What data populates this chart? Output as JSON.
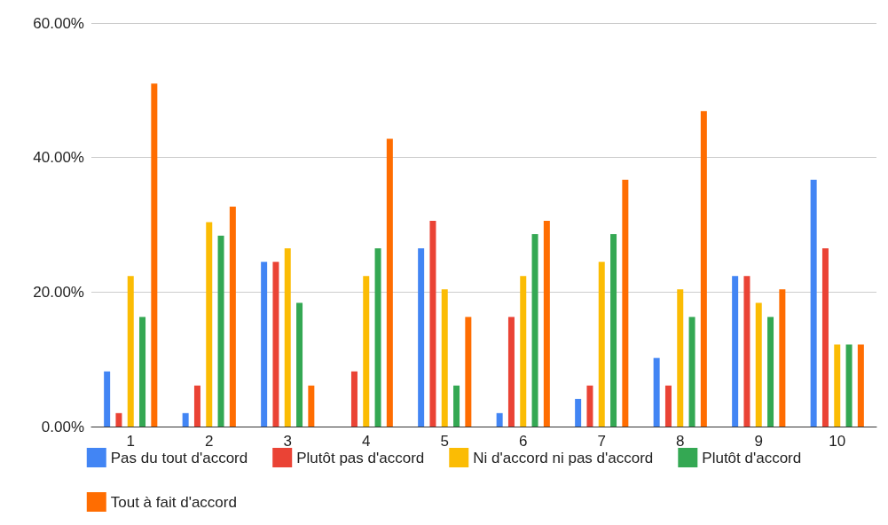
{
  "chart_data": {
    "type": "bar",
    "categories": [
      "1",
      "2",
      "3",
      "4",
      "5",
      "6",
      "7",
      "8",
      "9",
      "10"
    ],
    "series": [
      {
        "name": "Pas du tout d'accord",
        "color": "#4285f4",
        "values": [
          8.2,
          2.0,
          24.5,
          0,
          26.5,
          2.0,
          4.1,
          10.2,
          22.4,
          36.7
        ]
      },
      {
        "name": "Plutôt pas d'accord",
        "color": "#ea4335",
        "values": [
          2.0,
          6.1,
          24.5,
          8.2,
          30.6,
          16.3,
          6.1,
          6.1,
          22.4,
          26.5
        ]
      },
      {
        "name": "Ni d'accord ni pas d'accord",
        "color": "#fbbc04",
        "values": [
          22.4,
          30.4,
          26.5,
          22.4,
          20.4,
          22.4,
          24.5,
          20.4,
          18.4,
          12.2
        ]
      },
      {
        "name": "Plutôt d'accord",
        "color": "#34a853",
        "values": [
          16.3,
          28.4,
          18.4,
          26.5,
          6.1,
          28.6,
          28.6,
          16.3,
          16.3,
          12.2
        ]
      },
      {
        "name": "Tout à fait d'accord",
        "color": "#ff6d01",
        "values": [
          51.0,
          32.7,
          6.1,
          42.8,
          16.3,
          30.6,
          36.7,
          46.9,
          20.4,
          12.2
        ]
      }
    ],
    "ylim": [
      0,
      60
    ],
    "yticks": [
      {
        "value": 0,
        "label": "0.00%"
      },
      {
        "value": 20,
        "label": "20.00%"
      },
      {
        "value": 40,
        "label": "40.00%"
      },
      {
        "value": 60,
        "label": "60.00%"
      }
    ],
    "grid": "y",
    "legend": "bottom"
  }
}
